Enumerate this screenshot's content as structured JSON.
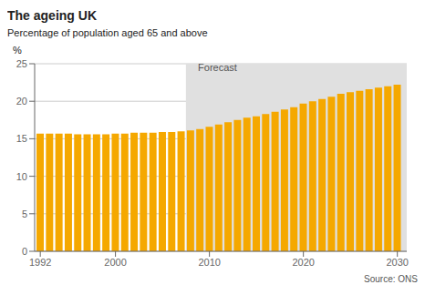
{
  "chart_data": {
    "type": "bar",
    "title": "The ageing UK",
    "subtitle": "Percentage of population aged 65 and above",
    "y_label": "%",
    "source": "Source: ONS",
    "annotations": [
      {
        "text": "Forecast",
        "x": 2008.3,
        "y": 24.5
      }
    ],
    "shaded_span": {
      "x": [
        2007.5,
        2031.0
      ],
      "color": "#E0E0E0"
    },
    "x": [
      1992,
      1993,
      1994,
      1995,
      1996,
      1997,
      1998,
      1999,
      2000,
      2001,
      2002,
      2003,
      2004,
      2005,
      2006,
      2007,
      2008,
      2009,
      2010,
      2011,
      2012,
      2013,
      2014,
      2015,
      2016,
      2017,
      2018,
      2019,
      2020,
      2021,
      2022,
      2023,
      2024,
      2025,
      2026,
      2027,
      2028,
      2029,
      2030
    ],
    "values": [
      15.7,
      15.7,
      15.7,
      15.7,
      15.6,
      15.6,
      15.6,
      15.6,
      15.7,
      15.7,
      15.8,
      15.8,
      15.8,
      15.9,
      15.9,
      16.0,
      16.1,
      16.3,
      16.6,
      16.9,
      17.2,
      17.5,
      17.8,
      18.0,
      18.3,
      18.6,
      18.9,
      19.2,
      19.7,
      20.0,
      20.3,
      20.6,
      21.0,
      21.2,
      21.4,
      21.6,
      21.8,
      22.0,
      22.2
    ],
    "color": "#F5A800",
    "xlim": [
      1991.4,
      2031.0
    ],
    "xticks": [
      1992,
      2000,
      2010,
      2020,
      2030
    ],
    "ylim": [
      0,
      25
    ],
    "yticks": [
      0,
      5,
      10,
      15,
      20,
      25
    ],
    "grid": true
  }
}
